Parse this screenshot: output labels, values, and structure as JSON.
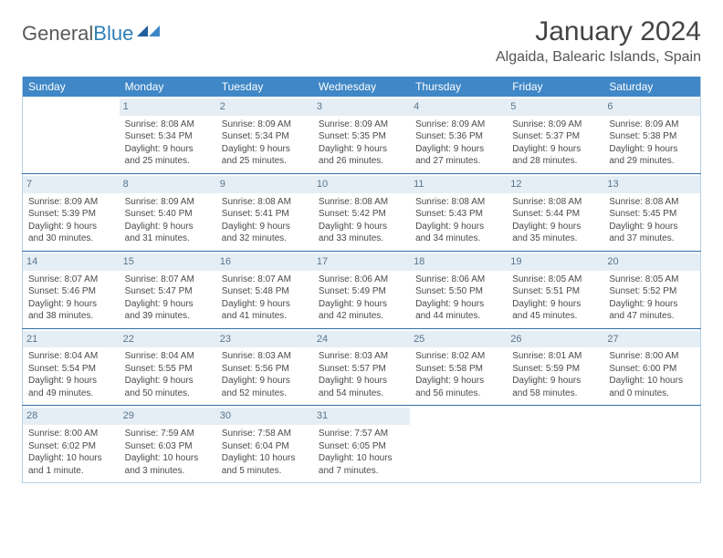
{
  "brand": {
    "word1": "General",
    "word2": "Blue"
  },
  "title": "January 2024",
  "location": "Algaida, Balearic Islands, Spain",
  "colors": {
    "header_bg": "#3f87c6",
    "daynum_bg": "#e6eef5",
    "row_border": "#2f6fa8",
    "outer_border": "#b7d0e3"
  },
  "dayHeaders": [
    "Sunday",
    "Monday",
    "Tuesday",
    "Wednesday",
    "Thursday",
    "Friday",
    "Saturday"
  ],
  "weeks": [
    [
      {
        "blank": true
      },
      {
        "n": "1",
        "sr": "8:08 AM",
        "ss": "5:34 PM",
        "dl": "9 hours and 25 minutes."
      },
      {
        "n": "2",
        "sr": "8:09 AM",
        "ss": "5:34 PM",
        "dl": "9 hours and 25 minutes."
      },
      {
        "n": "3",
        "sr": "8:09 AM",
        "ss": "5:35 PM",
        "dl": "9 hours and 26 minutes."
      },
      {
        "n": "4",
        "sr": "8:09 AM",
        "ss": "5:36 PM",
        "dl": "9 hours and 27 minutes."
      },
      {
        "n": "5",
        "sr": "8:09 AM",
        "ss": "5:37 PM",
        "dl": "9 hours and 28 minutes."
      },
      {
        "n": "6",
        "sr": "8:09 AM",
        "ss": "5:38 PM",
        "dl": "9 hours and 29 minutes."
      }
    ],
    [
      {
        "n": "7",
        "sr": "8:09 AM",
        "ss": "5:39 PM",
        "dl": "9 hours and 30 minutes."
      },
      {
        "n": "8",
        "sr": "8:09 AM",
        "ss": "5:40 PM",
        "dl": "9 hours and 31 minutes."
      },
      {
        "n": "9",
        "sr": "8:08 AM",
        "ss": "5:41 PM",
        "dl": "9 hours and 32 minutes."
      },
      {
        "n": "10",
        "sr": "8:08 AM",
        "ss": "5:42 PM",
        "dl": "9 hours and 33 minutes."
      },
      {
        "n": "11",
        "sr": "8:08 AM",
        "ss": "5:43 PM",
        "dl": "9 hours and 34 minutes."
      },
      {
        "n": "12",
        "sr": "8:08 AM",
        "ss": "5:44 PM",
        "dl": "9 hours and 35 minutes."
      },
      {
        "n": "13",
        "sr": "8:08 AM",
        "ss": "5:45 PM",
        "dl": "9 hours and 37 minutes."
      }
    ],
    [
      {
        "n": "14",
        "sr": "8:07 AM",
        "ss": "5:46 PM",
        "dl": "9 hours and 38 minutes."
      },
      {
        "n": "15",
        "sr": "8:07 AM",
        "ss": "5:47 PM",
        "dl": "9 hours and 39 minutes."
      },
      {
        "n": "16",
        "sr": "8:07 AM",
        "ss": "5:48 PM",
        "dl": "9 hours and 41 minutes."
      },
      {
        "n": "17",
        "sr": "8:06 AM",
        "ss": "5:49 PM",
        "dl": "9 hours and 42 minutes."
      },
      {
        "n": "18",
        "sr": "8:06 AM",
        "ss": "5:50 PM",
        "dl": "9 hours and 44 minutes."
      },
      {
        "n": "19",
        "sr": "8:05 AM",
        "ss": "5:51 PM",
        "dl": "9 hours and 45 minutes."
      },
      {
        "n": "20",
        "sr": "8:05 AM",
        "ss": "5:52 PM",
        "dl": "9 hours and 47 minutes."
      }
    ],
    [
      {
        "n": "21",
        "sr": "8:04 AM",
        "ss": "5:54 PM",
        "dl": "9 hours and 49 minutes."
      },
      {
        "n": "22",
        "sr": "8:04 AM",
        "ss": "5:55 PM",
        "dl": "9 hours and 50 minutes."
      },
      {
        "n": "23",
        "sr": "8:03 AM",
        "ss": "5:56 PM",
        "dl": "9 hours and 52 minutes."
      },
      {
        "n": "24",
        "sr": "8:03 AM",
        "ss": "5:57 PM",
        "dl": "9 hours and 54 minutes."
      },
      {
        "n": "25",
        "sr": "8:02 AM",
        "ss": "5:58 PM",
        "dl": "9 hours and 56 minutes."
      },
      {
        "n": "26",
        "sr": "8:01 AM",
        "ss": "5:59 PM",
        "dl": "9 hours and 58 minutes."
      },
      {
        "n": "27",
        "sr": "8:00 AM",
        "ss": "6:00 PM",
        "dl": "10 hours and 0 minutes."
      }
    ],
    [
      {
        "n": "28",
        "sr": "8:00 AM",
        "ss": "6:02 PM",
        "dl": "10 hours and 1 minute."
      },
      {
        "n": "29",
        "sr": "7:59 AM",
        "ss": "6:03 PM",
        "dl": "10 hours and 3 minutes."
      },
      {
        "n": "30",
        "sr": "7:58 AM",
        "ss": "6:04 PM",
        "dl": "10 hours and 5 minutes."
      },
      {
        "n": "31",
        "sr": "7:57 AM",
        "ss": "6:05 PM",
        "dl": "10 hours and 7 minutes."
      },
      {
        "blank": true
      },
      {
        "blank": true
      },
      {
        "blank": true
      }
    ]
  ],
  "labels": {
    "sunrise": "Sunrise: ",
    "sunset": "Sunset: ",
    "daylight": "Daylight: "
  }
}
